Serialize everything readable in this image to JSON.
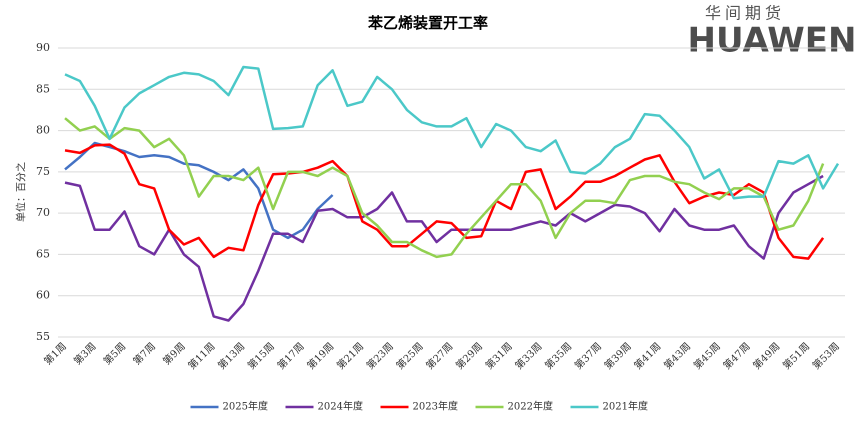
{
  "chart_data": {
    "type": "line",
    "title": "苯乙烯装置开工率",
    "y_label": "单位：百分之",
    "logo": {
      "cn": "华间期货",
      "en": "HUAWEN"
    },
    "categories": [
      "第1周",
      null,
      "第3周",
      null,
      "第5周",
      null,
      "第7周",
      null,
      "第9周",
      null,
      "第11周",
      null,
      "第13周",
      null,
      "第15周",
      null,
      "第17周",
      null,
      "第19周",
      null,
      "第21周",
      null,
      "第23周",
      null,
      "第25周",
      null,
      "第27周",
      null,
      "第29周",
      null,
      "第31周",
      null,
      "第33周",
      null,
      "第35周",
      null,
      "第37周",
      null,
      "第39周",
      null,
      "第41周",
      null,
      "第43周",
      null,
      "第45周",
      null,
      "第47周",
      null,
      "第49周",
      null,
      "第51周",
      null,
      "第53周"
    ],
    "ylim": [
      55,
      90
    ],
    "yticks": [
      55,
      60,
      65,
      70,
      75,
      80,
      85,
      90
    ],
    "grid": true,
    "legend": "bottom",
    "series": [
      {
        "name": "2025年度",
        "color": "#4472c4",
        "values": [
          75.3,
          76.8,
          78.5,
          78,
          77.5,
          76.8,
          77,
          76.8,
          76,
          75.8,
          75,
          74,
          75.3,
          73,
          68,
          67,
          68,
          70.5,
          72.2,
          null,
          null,
          null,
          null,
          null,
          null,
          null,
          null,
          null,
          null,
          null,
          null,
          null,
          null,
          null,
          null,
          null,
          null,
          null,
          null,
          null,
          null,
          null,
          null,
          null,
          null,
          null,
          null,
          null,
          null,
          null,
          null,
          null,
          null
        ]
      },
      {
        "name": "2024年度",
        "color": "#7030a0",
        "values": [
          73.7,
          73.3,
          68,
          68,
          70.2,
          66,
          65,
          68,
          65,
          63.5,
          57.5,
          57,
          59,
          63,
          67.5,
          67.5,
          66.5,
          70.3,
          70.5,
          69.5,
          69.5,
          70.5,
          72.5,
          69,
          69,
          66.5,
          68,
          68,
          68,
          68,
          68,
          68.5,
          69,
          68.5,
          70,
          69,
          70,
          71,
          70.8,
          70,
          67.8,
          70.5,
          68.5,
          68,
          68,
          68.5,
          66,
          64.5,
          70,
          72.5,
          73.5,
          74.5,
          null
        ]
      },
      {
        "name": "2023年度",
        "color": "#ff0000",
        "values": [
          77.6,
          77.3,
          78.2,
          78.3,
          77.2,
          73.5,
          73,
          68,
          66.2,
          67,
          64.7,
          65.8,
          65.5,
          71,
          74.7,
          74.8,
          75,
          75.5,
          76.3,
          74.5,
          69,
          68,
          66,
          66,
          67.5,
          69,
          68.8,
          67,
          67.2,
          71.5,
          70.5,
          75,
          75.3,
          70.5,
          72,
          73.8,
          73.8,
          74.5,
          75.5,
          76.5,
          77,
          73.8,
          71.2,
          72,
          72.5,
          72.2,
          73.5,
          72.5,
          67,
          64.7,
          64.5,
          67,
          null
        ]
      },
      {
        "name": "2022年度",
        "color": "#92d050",
        "values": [
          81.5,
          80,
          80.5,
          79,
          80.3,
          80,
          78,
          79,
          77,
          72,
          74.5,
          74.5,
          74,
          75.5,
          70.5,
          75,
          75,
          74.5,
          75.5,
          74.5,
          70,
          68.5,
          66.5,
          66.5,
          65.5,
          64.7,
          65,
          67.5,
          69.5,
          71.5,
          73.5,
          73.5,
          71.5,
          67,
          70,
          71.5,
          71.5,
          71.2,
          74,
          74.5,
          74.5,
          73.8,
          73.5,
          72.5,
          71.7,
          73,
          73,
          72,
          68,
          68.5,
          71.5,
          76,
          null
        ]
      },
      {
        "name": "2021年度",
        "color": "#4bc8c8",
        "values": [
          86.8,
          86,
          83,
          79,
          82.8,
          84.5,
          85.5,
          86.5,
          87,
          86.8,
          86,
          84.3,
          87.7,
          87.5,
          80.2,
          80.3,
          80.5,
          85.5,
          87.3,
          83,
          83.5,
          86.5,
          85,
          82.5,
          81,
          80.5,
          80.5,
          81.5,
          78,
          80.8,
          80,
          78,
          77.5,
          78.8,
          75,
          74.8,
          76,
          78,
          79,
          82,
          81.8,
          80,
          78,
          74.2,
          75.3,
          71.8,
          72,
          72,
          76.3,
          76,
          77,
          73,
          76
        ]
      }
    ]
  }
}
